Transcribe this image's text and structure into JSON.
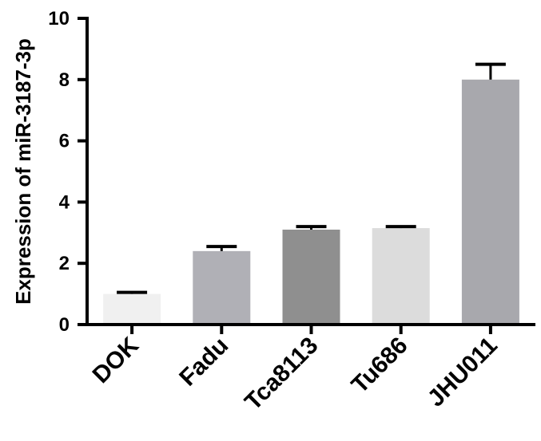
{
  "chart_data": {
    "type": "bar",
    "title": "",
    "xlabel": "",
    "ylabel": "Expression of miR-3187-3p",
    "ylim": [
      0,
      10
    ],
    "yticks": [
      0,
      2,
      4,
      6,
      8,
      10
    ],
    "categories": [
      "DOK",
      "Fadu",
      "Tca8113",
      "Tu686",
      "JHU011"
    ],
    "values": [
      1.0,
      2.4,
      3.1,
      3.15,
      8.0
    ],
    "errors": [
      0.05,
      0.15,
      0.1,
      0.05,
      0.5
    ],
    "colors": [
      "#f0f0f0",
      "#b0b0b6",
      "#8f8f8f",
      "#dcdcdc",
      "#a8a8ad"
    ],
    "grid": false,
    "legend": "none"
  }
}
